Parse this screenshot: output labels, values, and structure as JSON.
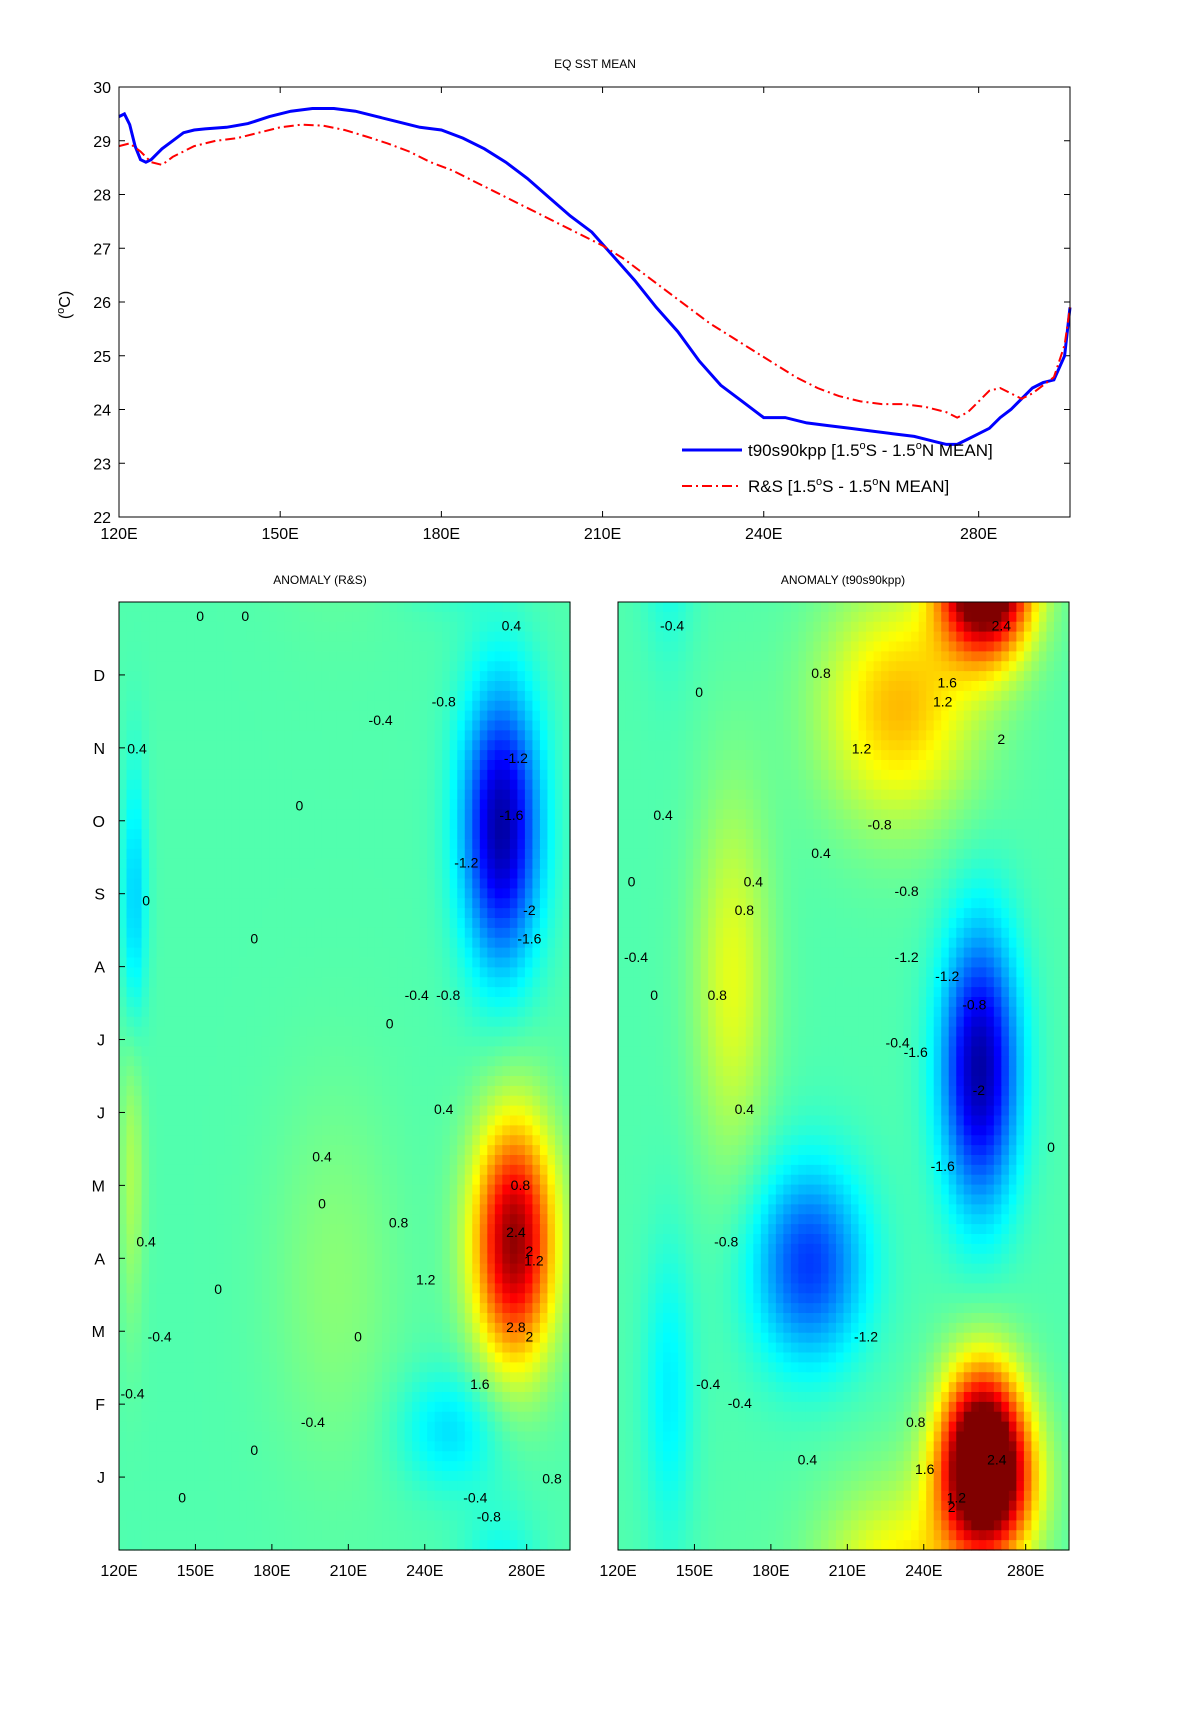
{
  "chart_data": [
    {
      "type": "line",
      "title": "EQ SST MEAN",
      "ylabel": "(°C)",
      "xlabel": "",
      "xlim": [
        120,
        297
      ],
      "ylim": [
        22,
        30
      ],
      "yticks": [
        22,
        23,
        24,
        25,
        26,
        27,
        28,
        29,
        30
      ],
      "xticks": [
        {
          "v": 120,
          "label": "120E"
        },
        {
          "v": 150,
          "label": "150E"
        },
        {
          "v": 180,
          "label": "180E"
        },
        {
          "v": 210,
          "label": "210E"
        },
        {
          "v": 240,
          "label": "240E"
        },
        {
          "v": 280,
          "label": "280E"
        }
      ],
      "legend_position": "bottom-right",
      "series": [
        {
          "name_parts": [
            "t90s90kpp [1.5",
            "o",
            "S - 1.5",
            "o",
            "N MEAN]"
          ],
          "color": "#0000ff",
          "style": "solid",
          "x": [
            120,
            121,
            122,
            123,
            124,
            125,
            126,
            127,
            128,
            130,
            132,
            134,
            136,
            140,
            144,
            148,
            152,
            156,
            160,
            164,
            168,
            172,
            176,
            180,
            184,
            188,
            192,
            196,
            200,
            204,
            208,
            212,
            216,
            220,
            224,
            228,
            232,
            236,
            240,
            244,
            248,
            252,
            256,
            260,
            264,
            268,
            270,
            272,
            274,
            276,
            278,
            280,
            282,
            284,
            286,
            288,
            290,
            292,
            294,
            296,
            297
          ],
          "y": [
            29.45,
            29.5,
            29.3,
            28.9,
            28.65,
            28.6,
            28.65,
            28.75,
            28.85,
            29.0,
            29.15,
            29.2,
            29.22,
            29.25,
            29.32,
            29.45,
            29.55,
            29.6,
            29.6,
            29.55,
            29.45,
            29.35,
            29.25,
            29.2,
            29.05,
            28.85,
            28.6,
            28.3,
            27.95,
            27.6,
            27.3,
            26.85,
            26.4,
            25.9,
            25.45,
            24.9,
            24.45,
            24.15,
            23.85,
            23.85,
            23.75,
            23.7,
            23.65,
            23.6,
            23.55,
            23.5,
            23.45,
            23.4,
            23.35,
            23.35,
            23.45,
            23.55,
            23.65,
            23.85,
            24.0,
            24.2,
            24.4,
            24.5,
            24.55,
            25.0,
            25.9
          ]
        },
        {
          "name_parts": [
            "R&S [1.5",
            "o",
            "S - 1.5",
            "o",
            "N MEAN]"
          ],
          "color": "#ff0000",
          "style": "dashdot",
          "x": [
            120,
            122,
            124,
            126,
            128,
            130,
            134,
            138,
            142,
            146,
            150,
            154,
            158,
            162,
            166,
            170,
            174,
            178,
            182,
            186,
            190,
            194,
            198,
            202,
            206,
            210,
            214,
            218,
            222,
            226,
            230,
            234,
            238,
            242,
            246,
            250,
            254,
            258,
            262,
            266,
            270,
            274,
            276,
            278,
            280,
            282,
            284,
            286,
            288,
            290,
            292,
            294,
            296,
            297
          ],
          "y": [
            28.9,
            28.95,
            28.8,
            28.6,
            28.55,
            28.7,
            28.9,
            29.0,
            29.05,
            29.15,
            29.25,
            29.3,
            29.28,
            29.2,
            29.08,
            28.95,
            28.8,
            28.6,
            28.45,
            28.25,
            28.05,
            27.85,
            27.65,
            27.45,
            27.25,
            27.05,
            26.8,
            26.5,
            26.2,
            25.9,
            25.6,
            25.35,
            25.1,
            24.85,
            24.6,
            24.4,
            24.25,
            24.15,
            24.1,
            24.1,
            24.05,
            23.95,
            23.85,
            23.95,
            24.15,
            24.35,
            24.4,
            24.3,
            24.2,
            24.3,
            24.45,
            24.6,
            25.2,
            25.9
          ]
        }
      ]
    },
    {
      "type": "heatmap",
      "title": "ANOMALY (R&S)",
      "xlim": [
        120,
        297
      ],
      "xticks": [
        {
          "v": 120,
          "label": "120E"
        },
        {
          "v": 150,
          "label": "150E"
        },
        {
          "v": 180,
          "label": "180E"
        },
        {
          "v": 210,
          "label": "210E"
        },
        {
          "v": 240,
          "label": "240E"
        },
        {
          "v": 280,
          "label": "280E"
        }
      ],
      "months": [
        "J",
        "F",
        "M",
        "A",
        "M",
        "J",
        "J",
        "A",
        "S",
        "O",
        "N",
        "D"
      ],
      "color_range": [
        -2.5,
        3.0
      ],
      "blobs": [
        {
          "lon": 275,
          "month": 3.5,
          "amp": 2.9,
          "lon_width": 16,
          "month_width": 1.6
        },
        {
          "lon": 270,
          "month": 9.0,
          "amp": -2.3,
          "lon_width": 15,
          "month_width": 1.8
        },
        {
          "lon": 126,
          "month": 8.0,
          "amp": -0.7,
          "lon_width": 5,
          "month_width": 1.8
        },
        {
          "lon": 250,
          "month": 1.0,
          "amp": -0.6,
          "lon_width": 20,
          "month_width": 0.8
        },
        {
          "lon": 125,
          "month": 4.5,
          "amp": 0.5,
          "lon_width": 5,
          "month_width": 2.0
        },
        {
          "lon": 205,
          "month": 3.0,
          "amp": 0.3,
          "lon_width": 25,
          "month_width": 2.5
        }
      ],
      "contour_labels": [
        "0",
        "0",
        "0",
        "0",
        "0",
        "0",
        "0",
        "0",
        "0",
        "0",
        "0",
        "0.4",
        "0.4",
        "0.4",
        "0.4",
        "0.4",
        "-0.4",
        "-0.4",
        "-0.4",
        "-0.4",
        "-0.4",
        "-0.4",
        "-0.8",
        "-0.8",
        "-0.8",
        "-1.2",
        "-1.2",
        "-1.6",
        "-1.6",
        "-2",
        "0.8",
        "0.8",
        "0.8",
        "1.2",
        "1.2",
        "1.6",
        "2",
        "2",
        "2.4",
        "2.8"
      ]
    },
    {
      "type": "heatmap",
      "title": "ANOMALY (t90s90kpp)",
      "xlim": [
        120,
        297
      ],
      "xticks": [
        {
          "v": 120,
          "label": "120E"
        },
        {
          "v": 150,
          "label": "150E"
        },
        {
          "v": 180,
          "label": "180E"
        },
        {
          "v": 210,
          "label": "210E"
        },
        {
          "v": 240,
          "label": "240E"
        },
        {
          "v": 280,
          "label": "280E"
        }
      ],
      "months": [
        "J",
        "F",
        "M",
        "A",
        "M",
        "J",
        "J",
        "A",
        "S",
        "O",
        "N",
        "D"
      ],
      "color_range": [
        -2.5,
        3.0
      ],
      "blobs": [
        {
          "lon": 265,
          "month": 12.2,
          "amp": 2.6,
          "lon_width": 18,
          "month_width": 1.0
        },
        {
          "lon": 230,
          "month": 10.6,
          "amp": 1.3,
          "lon_width": 30,
          "month_width": 1.5
        },
        {
          "lon": 263,
          "month": 0.9,
          "amp": 2.6,
          "lon_width": 16,
          "month_width": 1.1
        },
        {
          "lon": 262,
          "month": 5.8,
          "amp": -2.3,
          "lon_width": 15,
          "month_width": 1.8
        },
        {
          "lon": 195,
          "month": 3.2,
          "amp": -1.5,
          "lon_width": 22,
          "month_width": 1.3
        },
        {
          "lon": 165,
          "month": 7.0,
          "amp": 0.8,
          "lon_width": 15,
          "month_width": 2.5
        },
        {
          "lon": 140,
          "month": 1.5,
          "amp": -0.5,
          "lon_width": 10,
          "month_width": 2.0
        }
      ],
      "contour_labels": [
        "-0.4",
        "-0.4",
        "-0.4",
        "-0.4",
        "-0.4",
        "-0.8",
        "-0.8",
        "-0.8",
        "-0.8",
        "-1.2",
        "-1.2",
        "-1.2",
        "-1.6",
        "-1.6",
        "-2",
        "0",
        "0",
        "0",
        "0",
        "0.4",
        "0.4",
        "0.4",
        "0.4",
        "0.4",
        "0.8",
        "0.8",
        "0.8",
        "0.8",
        "1.2",
        "1.2",
        "1.2",
        "1.6",
        "1.6",
        "2",
        "2",
        "2.4",
        "2.4"
      ]
    }
  ]
}
